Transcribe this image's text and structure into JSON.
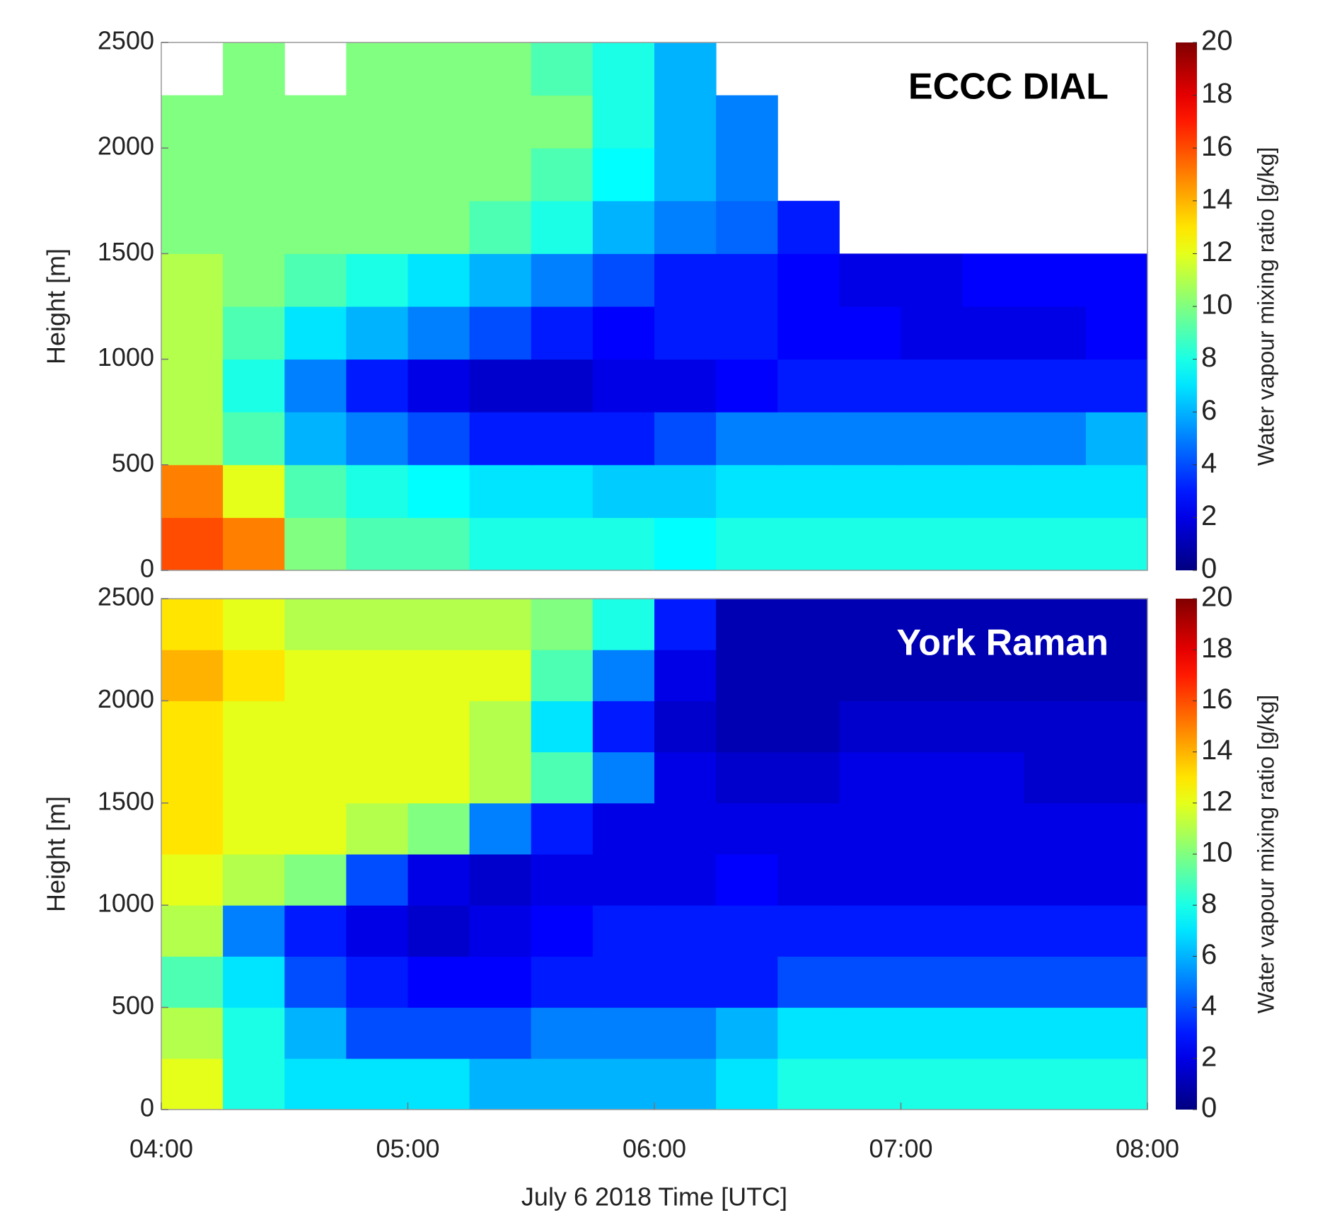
{
  "chart_data": [
    {
      "type": "heatmap",
      "title": "ECCC DIAL",
      "title_color": "#000000",
      "ylabel": "Height [m]",
      "colorbar_label": "Water vapour mixing ratio [g/kg]",
      "colormap": "jet",
      "xlim": [
        4,
        8
      ],
      "ylim": [
        0,
        2500
      ],
      "yticks": [
        0,
        500,
        1000,
        1500,
        2000,
        2500
      ],
      "clim": [
        0,
        20
      ],
      "cticks": [
        0,
        2,
        4,
        6,
        8,
        10,
        12,
        14,
        16,
        18,
        20
      ],
      "x": [
        4.125,
        4.375,
        4.625,
        4.875,
        5.125,
        5.375,
        5.625,
        5.875,
        6.125,
        6.375,
        6.625,
        6.875,
        7.125,
        7.375,
        7.625,
        7.875
      ],
      "y": [
        125,
        375,
        625,
        875,
        1125,
        1375,
        1625,
        1875,
        2125,
        2375
      ],
      "values": [
        [
          16,
          15,
          10,
          9,
          9,
          8,
          8,
          8,
          7.5,
          8,
          8,
          8,
          8,
          8,
          8,
          8
        ],
        [
          15,
          12,
          9,
          8,
          7.5,
          7,
          7,
          6.5,
          6.5,
          7,
          7,
          7,
          7,
          7,
          7,
          7
        ],
        [
          11,
          9,
          6,
          5,
          4,
          3,
          3,
          3,
          4,
          5,
          5,
          5,
          5,
          5,
          5,
          6
        ],
        [
          11,
          8,
          5,
          3,
          2,
          1.5,
          1.5,
          2,
          2,
          2.5,
          3,
          3,
          3,
          3,
          3,
          3
        ],
        [
          11,
          9,
          7,
          6,
          5,
          4,
          3,
          2.5,
          3,
          3,
          2.5,
          2.5,
          2,
          2,
          2,
          2.5
        ],
        [
          11,
          10,
          9,
          8,
          7,
          6,
          5,
          4,
          3,
          3,
          2.5,
          2,
          2,
          2.5,
          2.5,
          2.5
        ],
        [
          10,
          10,
          10,
          10,
          10,
          9,
          8,
          6,
          5,
          4.5,
          3,
          null,
          null,
          null,
          null,
          null
        ],
        [
          10,
          10,
          10,
          10,
          10,
          10,
          9,
          7.5,
          6,
          5,
          null,
          null,
          null,
          null,
          null,
          null
        ],
        [
          10,
          10,
          10,
          10,
          10,
          10,
          10,
          8,
          6,
          5,
          null,
          null,
          null,
          null,
          null,
          null
        ],
        [
          null,
          10,
          null,
          10,
          10,
          10,
          9,
          8,
          6,
          null,
          null,
          null,
          null,
          null,
          null,
          null
        ]
      ]
    },
    {
      "type": "heatmap",
      "title": "York Raman",
      "title_color": "#ffffff",
      "ylabel": "Height [m]",
      "xlabel": "July 6 2018 Time [UTC]",
      "colorbar_label": "Water vapour mixing ratio [g/kg]",
      "colormap": "jet",
      "xlim": [
        4,
        8
      ],
      "ylim": [
        0,
        2500
      ],
      "yticks": [
        0,
        500,
        1000,
        1500,
        2000,
        2500
      ],
      "xticks": [
        {
          "value": 4,
          "label": "04:00"
        },
        {
          "value": 5,
          "label": "05:00"
        },
        {
          "value": 6,
          "label": "06:00"
        },
        {
          "value": 7,
          "label": "07:00"
        },
        {
          "value": 8,
          "label": "08:00"
        }
      ],
      "clim": [
        0,
        20
      ],
      "cticks": [
        0,
        2,
        4,
        6,
        8,
        10,
        12,
        14,
        16,
        18,
        20
      ],
      "x": [
        4.125,
        4.375,
        4.625,
        4.875,
        5.125,
        5.375,
        5.625,
        5.875,
        6.125,
        6.375,
        6.625,
        6.875,
        7.125,
        7.375,
        7.625,
        7.875
      ],
      "y": [
        125,
        375,
        625,
        875,
        1125,
        1375,
        1625,
        1875,
        2125,
        2375
      ],
      "values": [
        [
          12,
          8,
          7,
          7,
          7,
          6,
          6,
          6,
          6,
          7,
          8,
          8,
          8,
          8,
          8,
          8
        ],
        [
          11,
          8,
          6,
          4,
          4,
          4,
          5,
          5,
          5,
          6,
          7,
          7,
          7,
          7,
          7,
          7
        ],
        [
          9,
          7,
          4,
          3,
          2.5,
          2.5,
          3,
          3,
          3,
          3,
          4,
          4,
          4,
          4,
          4,
          4
        ],
        [
          11,
          5,
          3,
          2,
          1.5,
          2,
          2.5,
          3,
          3,
          3,
          3,
          3,
          3,
          3,
          3,
          3
        ],
        [
          12,
          11,
          10,
          4,
          2,
          1.5,
          2,
          2,
          2,
          2.5,
          2,
          2,
          2,
          2,
          2,
          2
        ],
        [
          13,
          12,
          12,
          11,
          10,
          5,
          3,
          2,
          2,
          2,
          2,
          2,
          2,
          2,
          2,
          2
        ],
        [
          13,
          12,
          12,
          12,
          12,
          11,
          9,
          5,
          2,
          1.5,
          1.5,
          2,
          2,
          2,
          1.5,
          1.5
        ],
        [
          13,
          12,
          12,
          12,
          12,
          11,
          7,
          3,
          1.5,
          1,
          1,
          1.5,
          1.5,
          1.5,
          1.5,
          1.5
        ],
        [
          14,
          13,
          12,
          12,
          12,
          12,
          9,
          5,
          2,
          1,
          1,
          1,
          1,
          1,
          1,
          1
        ],
        [
          13,
          12,
          11,
          11,
          11,
          11,
          10,
          8,
          3,
          1,
          1,
          1,
          1,
          1,
          1,
          1
        ]
      ]
    }
  ]
}
